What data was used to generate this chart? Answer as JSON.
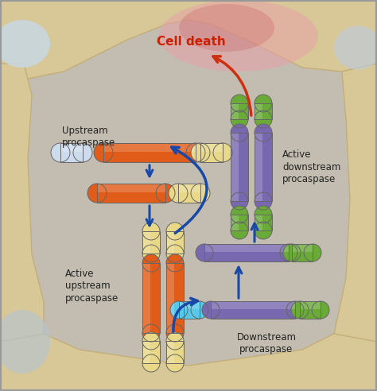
{
  "bg_color": "#c2bdb0",
  "membrane_fill": "#d8c898",
  "membrane_edge": "#c4ae78",
  "cell_interior": "#c2bdb0",
  "pink_glow1": "#e8a0a8",
  "pink_glow2": "#cc6066",
  "blue_corner": "#b8ccd8",
  "orange": "#e05c18",
  "yellow": "#e8d888",
  "white_blue": "#ccdcee",
  "purple": "#7868b0",
  "green": "#6aaa38",
  "cyan": "#58c8e8",
  "arrow_blue": "#1848a8",
  "arrow_red": "#cc3010",
  "text_color": "#222222",
  "title_color": "#cc2000",
  "upstream_label": "Upstream\nprocaspase",
  "active_upstream_label": "Active\nupstream\nprocaspase",
  "downstream_label": "Downstream\nprocaspase",
  "active_downstream_label": "Active\ndownstream\nprocaspase",
  "cell_death_label": "Cell death",
  "label_fontsize": 8.5,
  "title_fontsize": 11
}
